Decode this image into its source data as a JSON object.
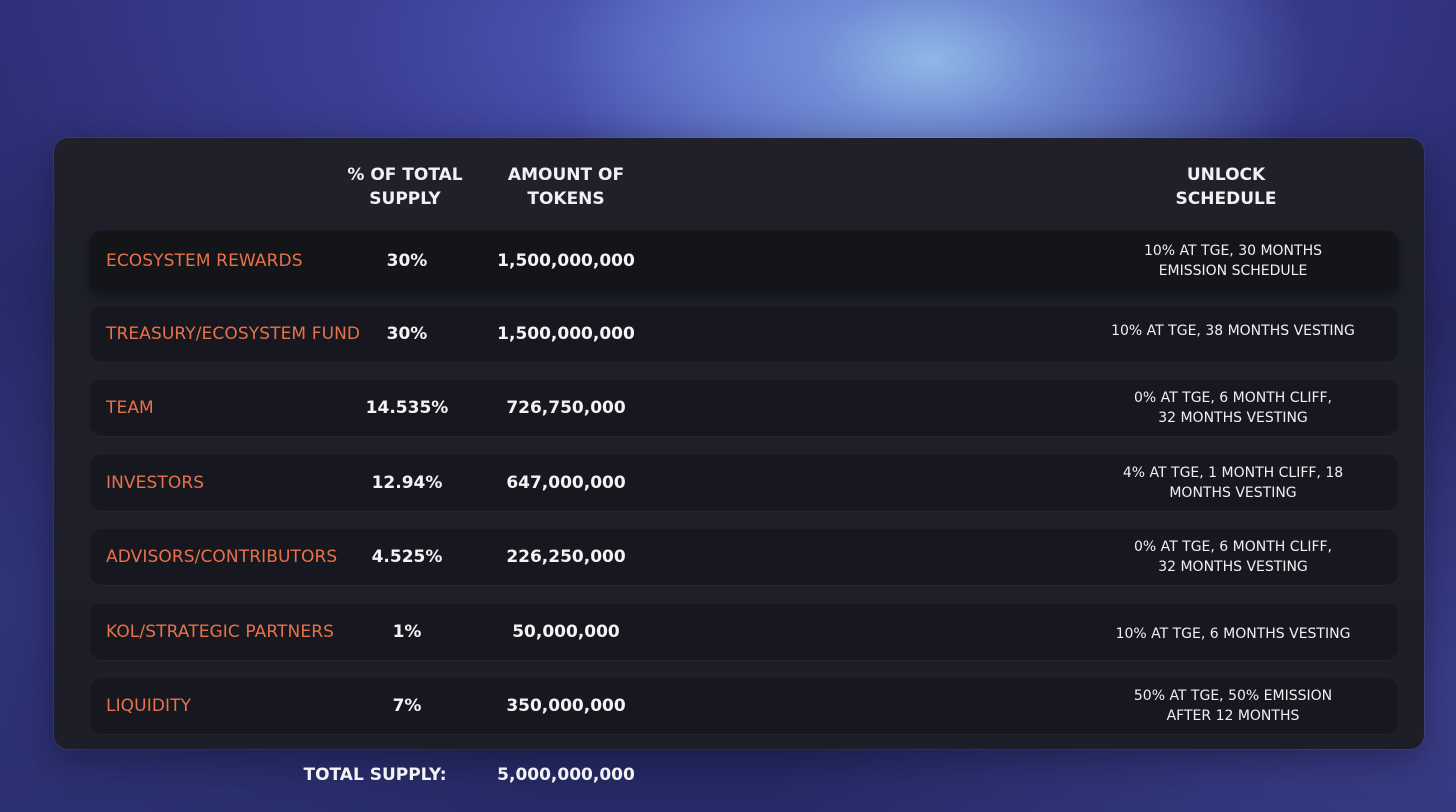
{
  "table": {
    "headers": {
      "percent_line1": "%  OF TOTAL",
      "percent_line2": "SUPPLY",
      "amount_line1": "AMOUNT OF",
      "amount_line2": "TOKENS",
      "unlock_line1": "UNLOCK",
      "unlock_line2": "SCHEDULE"
    },
    "rows": [
      {
        "name": "ECOSYSTEM REWARDS",
        "percent": "30%",
        "amount": "1,500,000,000",
        "unlock_line1": "10% AT TGE, 30 MONTHS",
        "unlock_line2": "EMISSION SCHEDULE"
      },
      {
        "name": "TREASURY/ECOSYSTEM FUND",
        "percent": "30%",
        "amount": "1,500,000,000",
        "unlock_line1": "10% AT TGE, 38 MONTHS VESTING",
        "unlock_line2": ""
      },
      {
        "name": "TEAM",
        "percent": "14.535%",
        "amount": "726,750,000",
        "unlock_line1": "0% AT TGE, 6 MONTH CLIFF,",
        "unlock_line2": "32 MONTHS VESTING"
      },
      {
        "name": "INVESTORS",
        "percent": "12.94%",
        "amount": "647,000,000",
        "unlock_line1": "4% AT TGE, 1 MONTH CLIFF, 18",
        "unlock_line2": "MONTHS VESTING"
      },
      {
        "name": "ADVISORS/CONTRIBUTORS",
        "percent": "4.525%",
        "amount": "226,250,000",
        "unlock_line1": "0% AT TGE, 6 MONTH CLIFF,",
        "unlock_line2": "32 MONTHS VESTING"
      },
      {
        "name": "KOL/STRATEGIC PARTNERS",
        "percent": "1%",
        "amount": "50,000,000",
        "unlock_line1": "10% AT TGE, 6 MONTHS VESTING",
        "unlock_line2": ""
      },
      {
        "name": "LIQUIDITY",
        "percent": "7%",
        "amount": "350,000,000",
        "unlock_line1": "50% AT TGE,  50% EMISSION",
        "unlock_line2": "AFTER 12 MONTHS"
      }
    ]
  },
  "total": {
    "label": "TOTAL SUPPLY:",
    "value": "5,000,000,000"
  },
  "colors": {
    "category_name": "#e8714c",
    "panel": "#1f2029",
    "row": "#17181f"
  }
}
